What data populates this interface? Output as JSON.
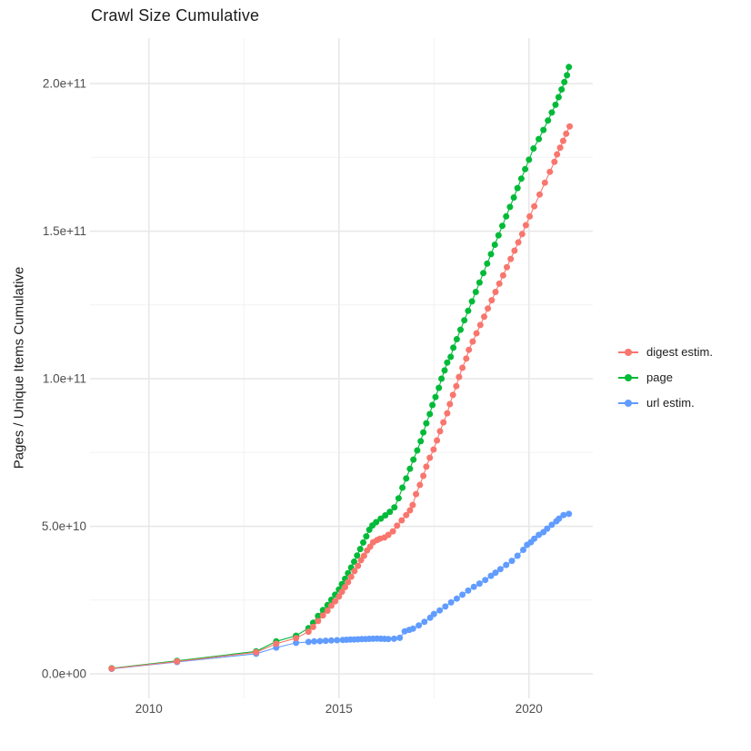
{
  "title": "Crawl Size Cumulative",
  "legend": {
    "items": [
      {
        "label": "digest estim.",
        "color": "#F8766D"
      },
      {
        "label": "page",
        "color": "#00BA38"
      },
      {
        "label": "url estim.",
        "color": "#619CFF"
      }
    ]
  },
  "chart_data": {
    "type": "line",
    "title": "Crawl Size Cumulative",
    "xlabel": "",
    "ylabel": "Pages / Unique Items Cumulative",
    "grid": true,
    "legend_position": "right",
    "y_unit": "values in 1e9 pages / items",
    "xlim": [
      2008.45,
      2021.68
    ],
    "ylim_e9": [
      -8.3,
      215.4
    ],
    "x_ticks": [
      {
        "label": "2010",
        "value": 2010
      },
      {
        "label": "2015",
        "value": 2015
      },
      {
        "label": "2020",
        "value": 2020
      }
    ],
    "x_minor_ticks": [
      2012.5,
      2017.5
    ],
    "y_ticks": [
      {
        "label": "0.0e+00",
        "value": 0
      },
      {
        "label": "5.0e+10",
        "value": 50
      },
      {
        "label": "1.0e+11",
        "value": 100
      },
      {
        "label": "1.5e+11",
        "value": 150
      },
      {
        "label": "2.0e+11",
        "value": 200
      }
    ],
    "y_minor_ticks": [
      25,
      75,
      125,
      175
    ],
    "colors": {
      "digest estim.": "#F8766D",
      "page": "#00BA38",
      "url estim.": "#619CFF"
    },
    "series": [
      {
        "name": "digest estim.",
        "color": "#F8766D",
        "points": [
          [
            2009.02,
            1.8
          ],
          [
            2010.74,
            4.2
          ],
          [
            2012.82,
            7.3
          ],
          [
            2013.35,
            10.2
          ],
          [
            2013.87,
            12.1
          ],
          [
            2014.2,
            14.3
          ],
          [
            2014.32,
            15.9
          ],
          [
            2014.45,
            17.9
          ],
          [
            2014.58,
            19.8
          ],
          [
            2014.7,
            21.4
          ],
          [
            2014.8,
            23.1
          ],
          [
            2014.9,
            24.6
          ],
          [
            2015.0,
            26.2
          ],
          [
            2015.08,
            27.8
          ],
          [
            2015.16,
            29.4
          ],
          [
            2015.24,
            31.1
          ],
          [
            2015.32,
            32.9
          ],
          [
            2015.41,
            34.8
          ],
          [
            2015.5,
            36.6
          ],
          [
            2015.58,
            38.5
          ],
          [
            2015.66,
            40.0
          ],
          [
            2015.74,
            41.8
          ],
          [
            2015.82,
            43.1
          ],
          [
            2015.9,
            44.6
          ],
          [
            2016.0,
            45.3
          ],
          [
            2016.08,
            45.8
          ],
          [
            2016.2,
            46.2
          ],
          [
            2016.3,
            47.1
          ],
          [
            2016.42,
            48.3
          ],
          [
            2016.53,
            50.2
          ],
          [
            2016.65,
            52.0
          ],
          [
            2016.77,
            53.8
          ],
          [
            2016.87,
            55.4
          ],
          [
            2016.94,
            57.2
          ],
          [
            2017.03,
            60.9
          ],
          [
            2017.13,
            64.0
          ],
          [
            2017.22,
            67.1
          ],
          [
            2017.3,
            70.2
          ],
          [
            2017.39,
            73.2
          ],
          [
            2017.49,
            76.0
          ],
          [
            2017.58,
            79.1
          ],
          [
            2017.66,
            82.2
          ],
          [
            2017.75,
            85.2
          ],
          [
            2017.85,
            88.3
          ],
          [
            2017.92,
            91.4
          ],
          [
            2018.0,
            94.5
          ],
          [
            2018.09,
            97.5
          ],
          [
            2018.16,
            100.6
          ],
          [
            2018.25,
            103.7
          ],
          [
            2018.35,
            106.8
          ],
          [
            2018.42,
            109.8
          ],
          [
            2018.52,
            112.6
          ],
          [
            2018.62,
            115.4
          ],
          [
            2018.72,
            118.2
          ],
          [
            2018.82,
            121.0
          ],
          [
            2018.92,
            123.8
          ],
          [
            2019.02,
            126.6
          ],
          [
            2019.12,
            129.4
          ],
          [
            2019.22,
            132.2
          ],
          [
            2019.32,
            135.0
          ],
          [
            2019.42,
            137.8
          ],
          [
            2019.52,
            140.6
          ],
          [
            2019.62,
            143.4
          ],
          [
            2019.72,
            146.2
          ],
          [
            2019.82,
            149.0
          ],
          [
            2019.92,
            152.0
          ],
          [
            2020.02,
            155.0
          ],
          [
            2020.14,
            158.4
          ],
          [
            2020.28,
            162.4
          ],
          [
            2020.42,
            166.4
          ],
          [
            2020.55,
            170.1
          ],
          [
            2020.67,
            173.5
          ],
          [
            2020.74,
            176.0
          ],
          [
            2020.82,
            178.3
          ],
          [
            2020.9,
            180.6
          ],
          [
            2020.98,
            183.0
          ],
          [
            2021.07,
            185.5
          ]
        ]
      },
      {
        "name": "page",
        "color": "#00BA38",
        "points": [
          [
            2009.02,
            1.9
          ],
          [
            2010.74,
            4.4
          ],
          [
            2012.82,
            7.6
          ],
          [
            2013.35,
            11.0
          ],
          [
            2013.87,
            12.9
          ],
          [
            2014.2,
            15.5
          ],
          [
            2014.32,
            17.3
          ],
          [
            2014.45,
            19.6
          ],
          [
            2014.58,
            21.6
          ],
          [
            2014.7,
            23.3
          ],
          [
            2014.8,
            25.1
          ],
          [
            2014.9,
            26.8
          ],
          [
            2015.0,
            28.6
          ],
          [
            2015.08,
            30.4
          ],
          [
            2015.16,
            32.2
          ],
          [
            2015.24,
            34.1
          ],
          [
            2015.32,
            36.0
          ],
          [
            2015.4,
            38.0
          ],
          [
            2015.48,
            40.1
          ],
          [
            2015.56,
            42.3
          ],
          [
            2015.64,
            44.5
          ],
          [
            2015.72,
            46.6
          ],
          [
            2015.8,
            48.8
          ],
          [
            2015.88,
            50.3
          ],
          [
            2015.98,
            51.4
          ],
          [
            2016.1,
            52.6
          ],
          [
            2016.22,
            53.7
          ],
          [
            2016.34,
            54.9
          ],
          [
            2016.46,
            56.4
          ],
          [
            2016.57,
            59.5
          ],
          [
            2016.67,
            63.1
          ],
          [
            2016.77,
            66.2
          ],
          [
            2016.87,
            69.5
          ],
          [
            2016.96,
            72.6
          ],
          [
            2017.06,
            75.7
          ],
          [
            2017.15,
            78.8
          ],
          [
            2017.22,
            81.8
          ],
          [
            2017.3,
            84.9
          ],
          [
            2017.39,
            88.0
          ],
          [
            2017.46,
            91.1
          ],
          [
            2017.54,
            93.8
          ],
          [
            2017.63,
            96.9
          ],
          [
            2017.7,
            100.0
          ],
          [
            2017.78,
            102.8
          ],
          [
            2017.85,
            105.5
          ],
          [
            2017.94,
            107.4
          ],
          [
            2018.01,
            110.5
          ],
          [
            2018.1,
            113.4
          ],
          [
            2018.2,
            116.6
          ],
          [
            2018.3,
            119.8
          ],
          [
            2018.4,
            123.0
          ],
          [
            2018.5,
            126.2
          ],
          [
            2018.6,
            129.4
          ],
          [
            2018.7,
            132.6
          ],
          [
            2018.8,
            135.8
          ],
          [
            2018.9,
            139.0
          ],
          [
            2019.0,
            142.2
          ],
          [
            2019.1,
            145.4
          ],
          [
            2019.2,
            148.6
          ],
          [
            2019.3,
            151.8
          ],
          [
            2019.4,
            155.0
          ],
          [
            2019.5,
            158.2
          ],
          [
            2019.6,
            161.4
          ],
          [
            2019.7,
            164.6
          ],
          [
            2019.8,
            167.8
          ],
          [
            2019.9,
            171.0
          ],
          [
            2020.0,
            174.2
          ],
          [
            2020.12,
            178.0
          ],
          [
            2020.26,
            181.2
          ],
          [
            2020.38,
            184.3
          ],
          [
            2020.5,
            187.5
          ],
          [
            2020.6,
            190.2
          ],
          [
            2020.7,
            192.8
          ],
          [
            2020.78,
            195.4
          ],
          [
            2020.86,
            198.0
          ],
          [
            2020.93,
            200.5
          ],
          [
            2021.0,
            202.8
          ],
          [
            2021.05,
            205.6
          ]
        ]
      },
      {
        "name": "url estim.",
        "color": "#619CFF",
        "points": [
          [
            2009.02,
            1.7
          ],
          [
            2010.74,
            4.0
          ],
          [
            2012.82,
            6.8
          ],
          [
            2013.35,
            8.9
          ],
          [
            2013.87,
            10.5
          ],
          [
            2014.2,
            10.8
          ],
          [
            2014.35,
            11.0
          ],
          [
            2014.5,
            11.1
          ],
          [
            2014.65,
            11.2
          ],
          [
            2014.8,
            11.3
          ],
          [
            2014.95,
            11.4
          ],
          [
            2015.1,
            11.5
          ],
          [
            2015.2,
            11.55
          ],
          [
            2015.3,
            11.6
          ],
          [
            2015.4,
            11.65
          ],
          [
            2015.5,
            11.7
          ],
          [
            2015.6,
            11.75
          ],
          [
            2015.7,
            11.8
          ],
          [
            2015.8,
            11.85
          ],
          [
            2015.9,
            11.9
          ],
          [
            2016.0,
            11.95
          ],
          [
            2016.1,
            11.9
          ],
          [
            2016.2,
            11.85
          ],
          [
            2016.3,
            11.8
          ],
          [
            2016.45,
            11.9
          ],
          [
            2016.6,
            12.2
          ],
          [
            2016.73,
            14.4
          ],
          [
            2016.85,
            14.9
          ],
          [
            2016.95,
            15.3
          ],
          [
            2017.1,
            16.4
          ],
          [
            2017.25,
            17.6
          ],
          [
            2017.4,
            19.0
          ],
          [
            2017.5,
            20.3
          ],
          [
            2017.65,
            21.5
          ],
          [
            2017.8,
            22.8
          ],
          [
            2017.95,
            24.2
          ],
          [
            2018.1,
            25.5
          ],
          [
            2018.25,
            26.8
          ],
          [
            2018.4,
            28.2
          ],
          [
            2018.55,
            29.5
          ],
          [
            2018.7,
            30.6
          ],
          [
            2018.85,
            31.8
          ],
          [
            2019.0,
            33.2
          ],
          [
            2019.12,
            34.3
          ],
          [
            2019.25,
            35.5
          ],
          [
            2019.4,
            36.9
          ],
          [
            2019.55,
            38.3
          ],
          [
            2019.7,
            40.0
          ],
          [
            2019.85,
            42.0
          ],
          [
            2019.95,
            43.7
          ],
          [
            2020.05,
            44.6
          ],
          [
            2020.14,
            45.8
          ],
          [
            2020.26,
            47.1
          ],
          [
            2020.38,
            48.0
          ],
          [
            2020.48,
            49.2
          ],
          [
            2020.6,
            50.5
          ],
          [
            2020.72,
            51.7
          ],
          [
            2020.79,
            52.6
          ],
          [
            2020.91,
            53.8
          ],
          [
            2021.05,
            54.2
          ]
        ]
      }
    ]
  }
}
